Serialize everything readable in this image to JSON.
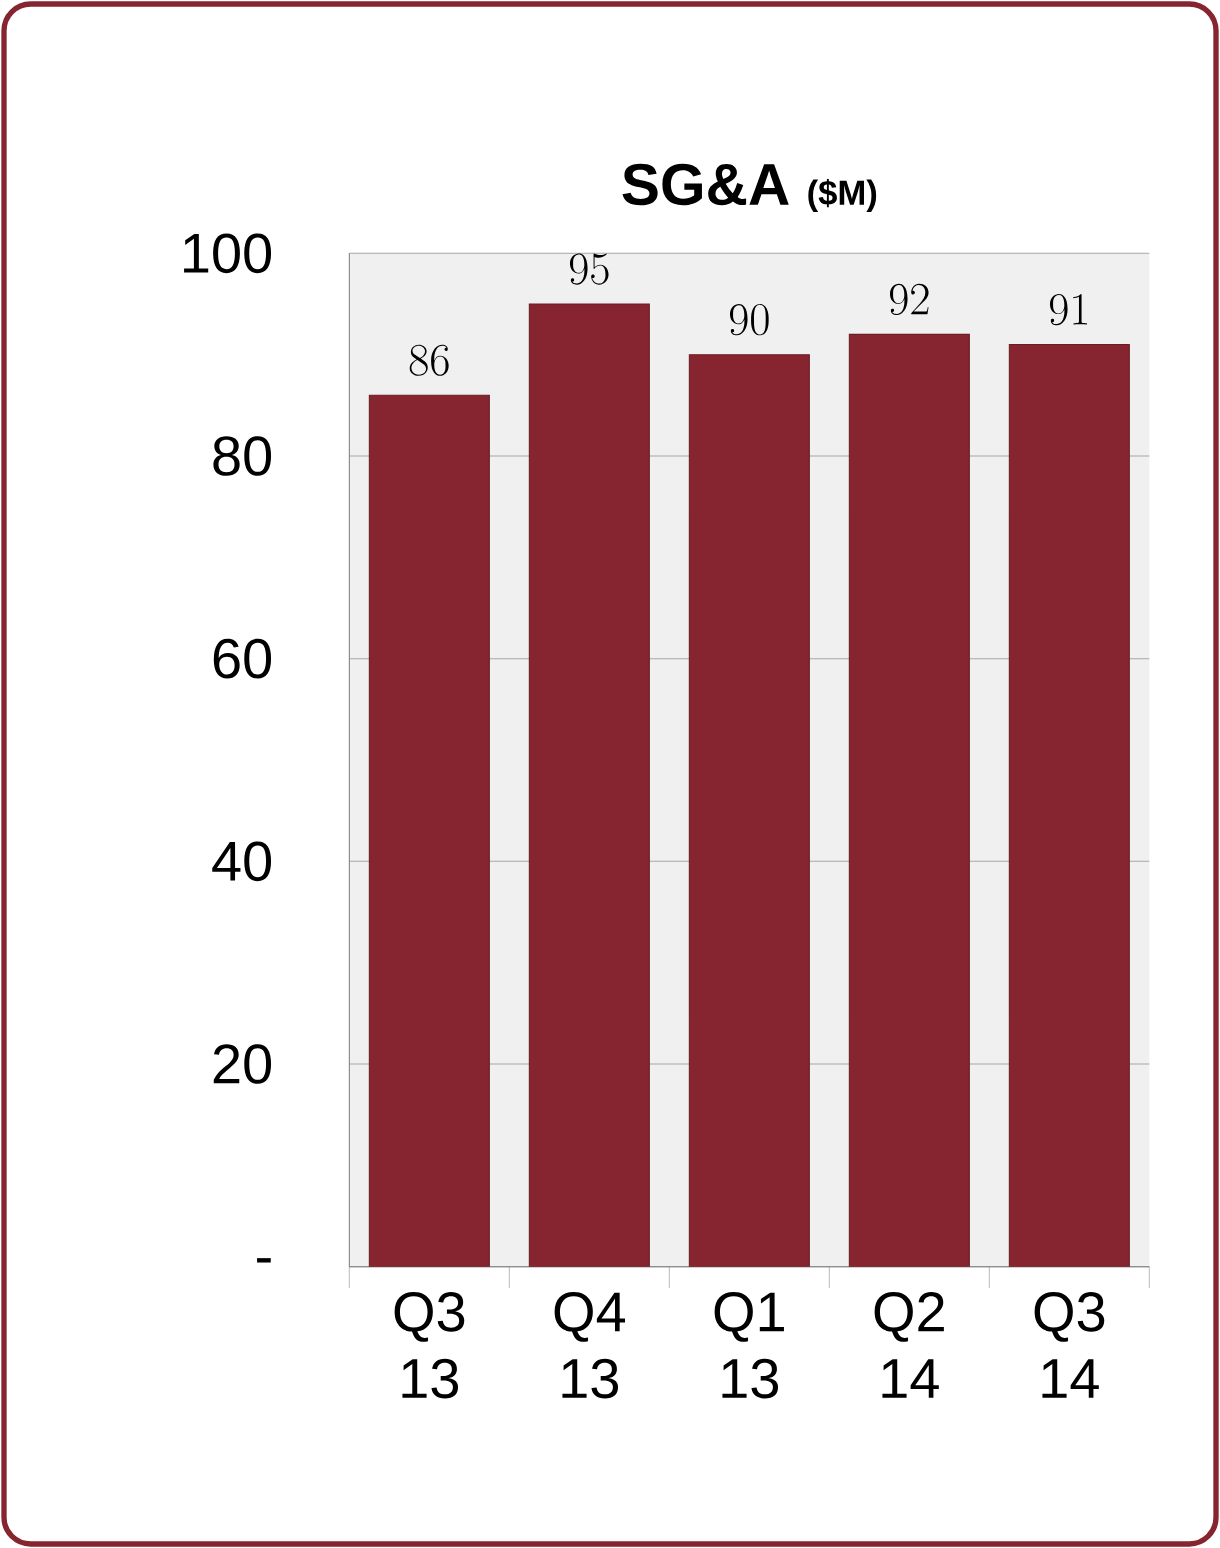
{
  "chart_data": {
    "type": "bar",
    "title": "SG&A",
    "subtitle": "($M)",
    "categories": [
      "Q3 13",
      "Q4 13",
      "Q1 13",
      "Q2 14",
      "Q3 14"
    ],
    "values": [
      86,
      95,
      90,
      92,
      91
    ],
    "color": "#862430",
    "ylim": [
      0,
      100
    ],
    "yticks": [
      {
        "value": 0,
        "label": "-"
      },
      20,
      40,
      60,
      80,
      100
    ],
    "grid": "y",
    "data_labels": true
  }
}
